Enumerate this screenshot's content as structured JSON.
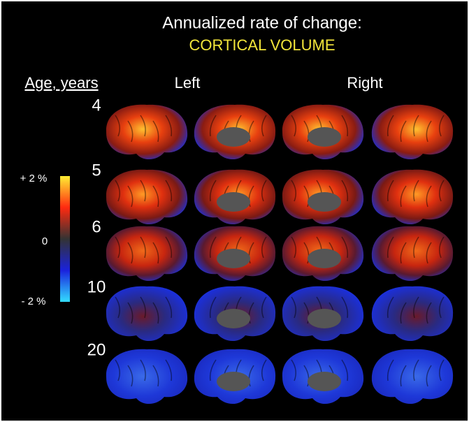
{
  "header": {
    "title": "Annualized rate of change:",
    "subtitle": "CORTICAL VOLUME"
  },
  "row_header": "Age, years",
  "columns": [
    "Left",
    "Right"
  ],
  "rows": [
    "4",
    "5",
    "6",
    "10",
    "20"
  ],
  "colorbar": {
    "top": "+ 2 %",
    "middle": "0",
    "bottom": "- 2 %"
  }
}
